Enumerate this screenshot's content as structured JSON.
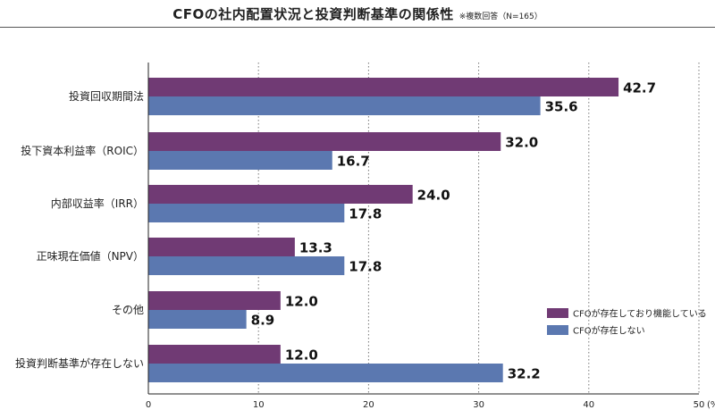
{
  "header": {
    "title": "CFOの社内配置状況と投資判断基準の関係性",
    "note": "※複数回答（N=165）"
  },
  "chart_data": {
    "type": "bar",
    "orientation": "horizontal",
    "title": "CFOの社内配置状況と投資判断基準の関係性",
    "note": "※複数回答（N=165）",
    "categories": [
      "投資回収期間法",
      "投下資本利益率（ROIC）",
      "内部収益率（IRR）",
      "正味現在価値（NPV）",
      "その他",
      "投資判断基準が存在しない"
    ],
    "series": [
      {
        "name": "CFOが存在しており機能している",
        "color": "#703a74",
        "values": [
          42.7,
          32.0,
          24.0,
          13.3,
          12.0,
          12.0
        ]
      },
      {
        "name": "CFOが存在しない",
        "color": "#5b78b0",
        "values": [
          35.6,
          16.7,
          17.8,
          17.8,
          8.9,
          32.2
        ]
      }
    ],
    "xlim": [
      0,
      50
    ],
    "xticks": [
      "0",
      "10",
      "20",
      "30",
      "40",
      "50"
    ],
    "xunit": "(%)",
    "grid": "vertical dotted",
    "legend": "bottom-right"
  }
}
